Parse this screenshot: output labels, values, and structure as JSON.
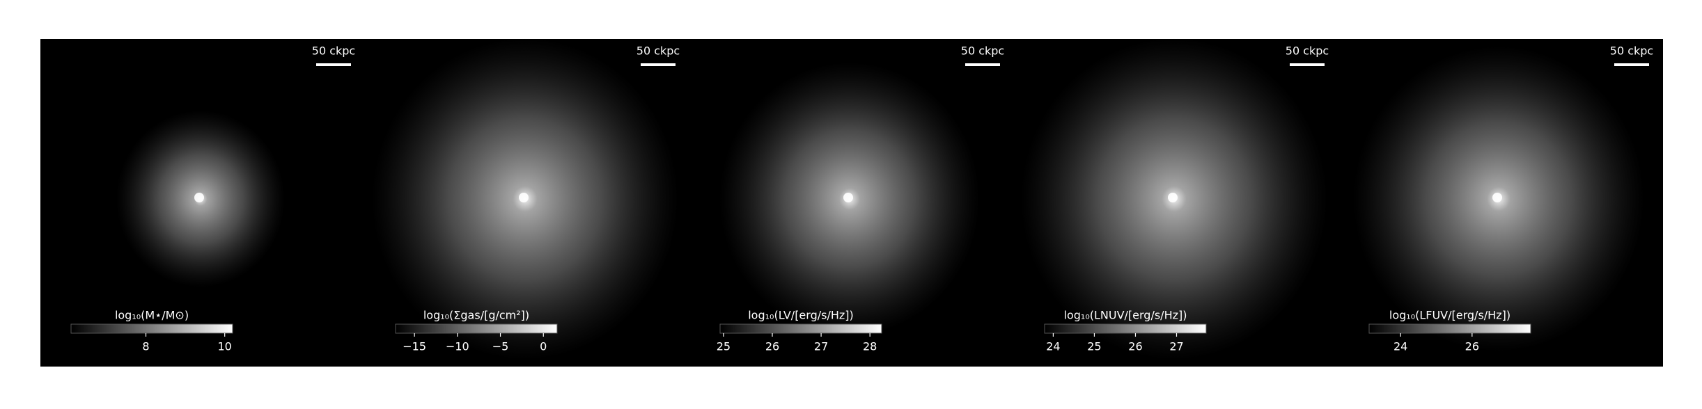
{
  "chart_data": [
    {
      "type": "image",
      "scalebar": "50 ckpc",
      "xlabel": "log₁₀(M⋆/M⊙)",
      "xlim": [
        6.1,
        10.2
      ],
      "xticks": [
        8,
        10
      ]
    },
    {
      "type": "image",
      "scalebar": "50 ckpc",
      "xlabel": "log₁₀(Σgas/[g/cm²])",
      "xlim": [
        -17.2,
        1.6
      ],
      "xticks": [
        {
          "value": -15,
          "label": "−15"
        },
        {
          "value": -10,
          "label": "−10"
        },
        {
          "value": -5,
          "label": "−5"
        },
        0
      ]
    },
    {
      "type": "image",
      "scalebar": "50 ckpc",
      "xlabel": "log₁₀(LV/[erg/s/Hz])",
      "xlim": [
        24.93,
        28.24
      ],
      "xticks": [
        25,
        26,
        27,
        28
      ]
    },
    {
      "type": "image",
      "scalebar": "50 ckpc",
      "xlabel": "log₁₀(LNUV/[erg/s/Hz])",
      "xlim": [
        23.79,
        27.72
      ],
      "xticks": [
        24,
        25,
        26,
        27
      ]
    },
    {
      "type": "image",
      "scalebar": "50 ckpc",
      "xlabel": "log₁₀(LFUV/[erg/s/Hz])",
      "xlim": [
        23.12,
        27.64
      ],
      "xticks": [
        24,
        26
      ]
    }
  ]
}
